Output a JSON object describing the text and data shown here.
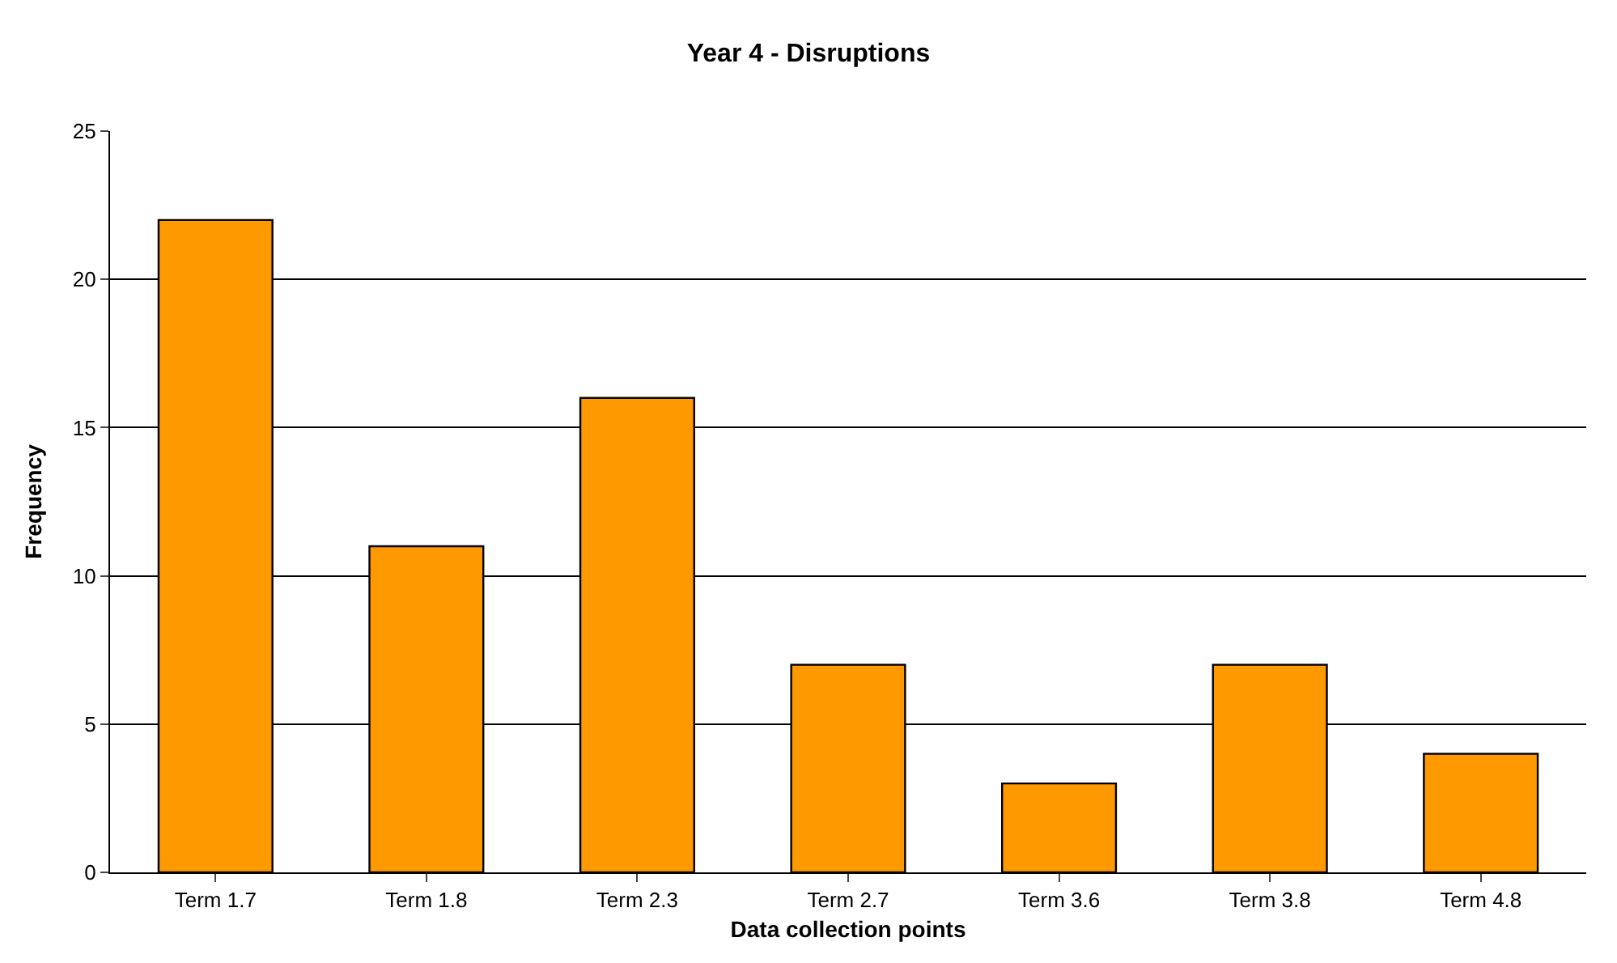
{
  "chart_data": {
    "type": "bar",
    "title": "Year 4 - Disruptions",
    "xlabel": "Data collection points",
    "ylabel": "Frequency",
    "categories": [
      "Term 1.7",
      "Term 1.8",
      "Term 2.3",
      "Term 2.7",
      "Term 3.6",
      "Term 3.8",
      "Term 4.8"
    ],
    "values": [
      22,
      11,
      16,
      7,
      3,
      7,
      4
    ],
    "color": "#ff9900",
    "ylim": [
      0,
      25
    ],
    "yticks": [
      0,
      5,
      10,
      15,
      20,
      25
    ],
    "grid": "y"
  }
}
